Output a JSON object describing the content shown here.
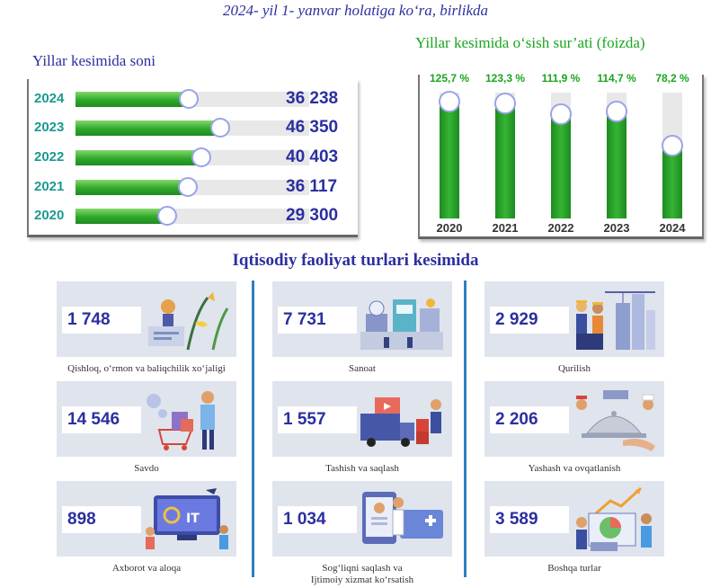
{
  "header": {
    "title": "2024- yil 1- yanvar holatiga ko‘ra, birlikda"
  },
  "left_chart": {
    "title": "Yillar kesimida soni",
    "fill_color": "#2ea82b"
  },
  "right_chart": {
    "title": "Yillar kesimida o‘sish sur’ati (foizda)",
    "fill_color": "#1d8a22"
  },
  "section": {
    "title": "Iqtisodiy faoliyat turlari kesimida"
  },
  "chart_data": [
    {
      "type": "bar",
      "orientation": "horizontal",
      "title": "Yillar kesimida soni",
      "categories": [
        "2024",
        "2023",
        "2022",
        "2021",
        "2020"
      ],
      "values": [
        36238,
        46350,
        40403,
        36117,
        29300
      ],
      "value_labels": [
        "36 238",
        "46 350",
        "40 403",
        "36 117",
        "29 300"
      ],
      "xlim": [
        0,
        75000
      ]
    },
    {
      "type": "bar",
      "orientation": "vertical",
      "title": "Yillar kesimida o‘sish sur’ati (foizda)",
      "categories": [
        "2020",
        "2021",
        "2022",
        "2023",
        "2024"
      ],
      "values": [
        125.7,
        123.3,
        111.9,
        114.7,
        78.2
      ],
      "value_labels": [
        "125,7 %",
        "123,3 %",
        "111,9 %",
        "114,7 %",
        "78,2 %"
      ],
      "ylim": [
        0,
        135
      ]
    }
  ],
  "cards": [
    {
      "value": "1 748",
      "label": "Qishloq, o‘rmon va baliqchilik xo‘jaligi",
      "icon": "agriculture-illustration"
    },
    {
      "value": "7 731",
      "label": "Sanoat",
      "icon": "industry-illustration"
    },
    {
      "value": "2 929",
      "label": "Qurilish",
      "icon": "construction-illustration"
    },
    {
      "value": "14 546",
      "label": "Savdo",
      "icon": "trade-illustration"
    },
    {
      "value": "1 557",
      "label": "Tashish va saqlash",
      "icon": "transport-illustration"
    },
    {
      "value": "2 206",
      "label": "Yashash va ovqatlanish",
      "icon": "food-service-illustration"
    },
    {
      "value": "898",
      "label": "Axborot va aloqa",
      "icon": "it-illustration"
    },
    {
      "value": "1 034",
      "label": "Sog‘liqni saqlash va\nIjtimoiy xizmat ko‘rsatish",
      "icon": "healthcare-illustration"
    },
    {
      "value": "3 589",
      "label": "Boshqa turlar",
      "icon": "other-illustration"
    }
  ]
}
